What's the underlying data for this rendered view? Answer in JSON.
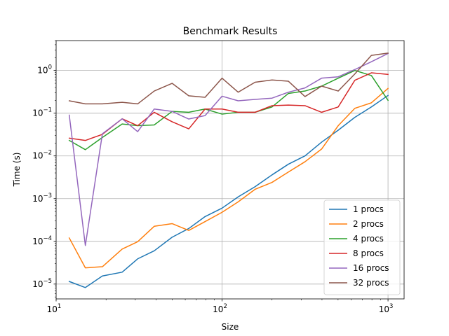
{
  "chart_data": {
    "type": "line",
    "title": "Benchmark Results",
    "xlabel": "Size",
    "ylabel": "Time (s)",
    "xscale": "log",
    "yscale": "log",
    "xlim": [
      10.0,
      1250.0
    ],
    "ylim": [
      4.5e-06,
      5.0
    ],
    "grid": true,
    "legend_position": "lower right",
    "x_ticks": [
      {
        "value": 10,
        "base": "10",
        "exp": "1"
      },
      {
        "value": 100,
        "base": "10",
        "exp": "2"
      },
      {
        "value": 1000,
        "base": "10",
        "exp": "3"
      }
    ],
    "y_ticks": [
      {
        "value": 1e-05,
        "base": "10",
        "exp": "−5"
      },
      {
        "value": 0.0001,
        "base": "10",
        "exp": "−4"
      },
      {
        "value": 0.001,
        "base": "10",
        "exp": "−3"
      },
      {
        "value": 0.01,
        "base": "10",
        "exp": "−2"
      },
      {
        "value": 0.1,
        "base": "10",
        "exp": "−1"
      },
      {
        "value": 1,
        "base": "10",
        "exp": "0"
      }
    ],
    "x": [
      12,
      15,
      19,
      25,
      31,
      39,
      50,
      63,
      79,
      100,
      125,
      158,
      200,
      251,
      316,
      398,
      501,
      631,
      794,
      1000
    ],
    "series": [
      {
        "name": "1 procs",
        "color": "#1f77b4",
        "values": [
          1.15e-05,
          8.3e-06,
          1.55e-05,
          1.9e-05,
          3.9e-05,
          6e-05,
          0.000125,
          0.0002,
          0.00038,
          0.0006,
          0.0011,
          0.0019,
          0.0036,
          0.0064,
          0.01,
          0.021,
          0.04,
          0.08,
          0.14,
          0.26
        ]
      },
      {
        "name": "2 procs",
        "color": "#ff7f0e",
        "values": [
          0.00012,
          2.4e-05,
          2.55e-05,
          6.6e-05,
          9.8e-05,
          0.000225,
          0.00026,
          0.00018,
          0.00029,
          0.00048,
          0.00084,
          0.00165,
          0.0024,
          0.0042,
          0.0073,
          0.0145,
          0.051,
          0.13,
          0.175,
          0.38
        ]
      },
      {
        "name": "4 procs",
        "color": "#2ca02c",
        "values": [
          0.023,
          0.014,
          0.027,
          0.056,
          0.051,
          0.053,
          0.11,
          0.105,
          0.125,
          0.095,
          0.105,
          0.105,
          0.14,
          0.29,
          0.33,
          0.43,
          0.66,
          1.0,
          0.76,
          0.2
        ]
      },
      {
        "name": "8 procs",
        "color": "#d62728",
        "values": [
          0.026,
          0.023,
          0.032,
          0.074,
          0.051,
          0.105,
          0.063,
          0.043,
          0.125,
          0.125,
          0.105,
          0.105,
          0.15,
          0.155,
          0.15,
          0.105,
          0.14,
          0.59,
          0.88,
          0.81
        ]
      },
      {
        "name": "16 procs",
        "color": "#9467bd",
        "values": [
          0.09,
          8e-05,
          0.033,
          0.074,
          0.037,
          0.125,
          0.11,
          0.073,
          0.088,
          0.25,
          0.195,
          0.21,
          0.225,
          0.31,
          0.39,
          0.66,
          0.71,
          1.05,
          1.6,
          2.5
        ]
      },
      {
        "name": "32 procs",
        "color": "#8c564b",
        "values": [
          0.195,
          0.165,
          0.165,
          0.18,
          0.165,
          0.33,
          0.5,
          0.255,
          0.235,
          0.66,
          0.31,
          0.53,
          0.6,
          0.56,
          0.245,
          0.43,
          0.33,
          0.83,
          2.25,
          2.55
        ]
      }
    ]
  }
}
